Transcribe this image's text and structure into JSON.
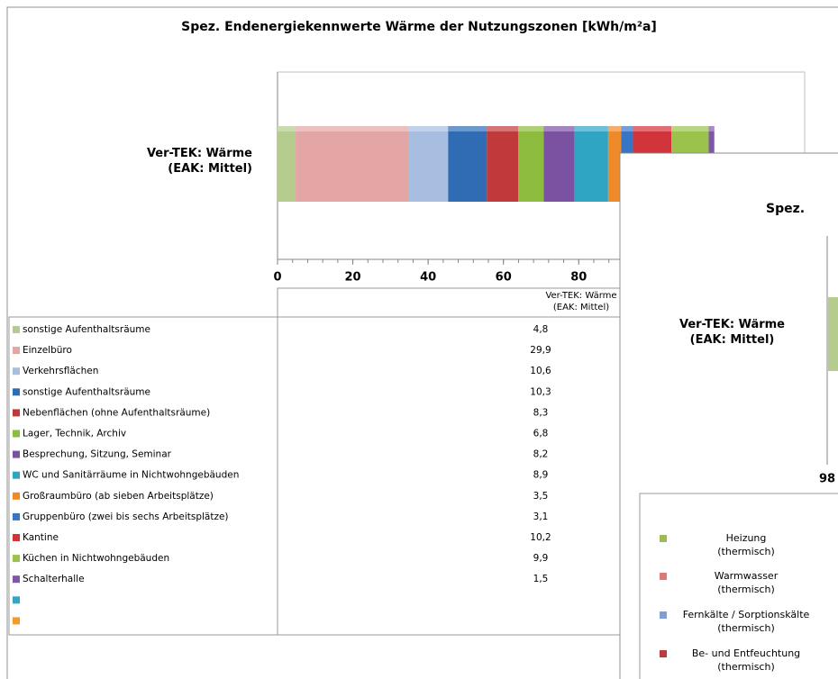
{
  "chart_data": [
    {
      "type": "bar",
      "orientation": "horizontal",
      "stacked": true,
      "title": "Spez. Endenergiekennwerte Wärme der Nutzungszonen [kWh/m²a]",
      "categories": [
        "Ver-TEK: Wärme\n(EAK: Mittel)"
      ],
      "table_header": "Ver-TEK: Wärme\n(EAK: Mittel)",
      "xlim": [
        0,
        140
      ],
      "xticks": [
        0,
        20,
        40,
        60,
        80
      ],
      "series": [
        {
          "name": "sonstige Aufenthaltsräume",
          "color": "#b5cc8e",
          "values": [
            4.8
          ],
          "value_labels": [
            "4,8"
          ]
        },
        {
          "name": "Einzelbüro",
          "color": "#e3a6a5",
          "values": [
            29.9
          ],
          "value_labels": [
            "29,9"
          ]
        },
        {
          "name": "Verkehrsflächen",
          "color": "#a7bee0",
          "values": [
            10.6
          ],
          "value_labels": [
            "10,6"
          ]
        },
        {
          "name": "sonstige Aufenthaltsräume",
          "color": "#2f6cb4",
          "values": [
            10.3
          ],
          "value_labels": [
            "10,3"
          ]
        },
        {
          "name": "Nebenflächen (ohne Aufenthaltsräume)",
          "color": "#c0393b",
          "values": [
            8.3
          ],
          "value_labels": [
            "8,3"
          ]
        },
        {
          "name": "Lager, Technik, Archiv",
          "color": "#8cbb3d",
          "values": [
            6.8
          ],
          "value_labels": [
            "6,8"
          ]
        },
        {
          "name": "Besprechung, Sitzung, Seminar",
          "color": "#7a52a1",
          "values": [
            8.2
          ],
          "value_labels": [
            "8,2"
          ]
        },
        {
          "name": "WC und Sanitärräume in Nichtwohngebäuden",
          "color": "#2fa5c3",
          "values": [
            8.9
          ],
          "value_labels": [
            "8,9"
          ]
        },
        {
          "name": "Großraumbüro (ab sieben Arbeitsplätze)",
          "color": "#ef8a2b",
          "values": [
            3.5
          ],
          "value_labels": [
            "3,5"
          ]
        },
        {
          "name": "Gruppenbüro (zwei bis sechs Arbeitsplätze)",
          "color": "#3775c6",
          "values": [
            3.1
          ],
          "value_labels": [
            "3,1"
          ]
        },
        {
          "name": "Kantine",
          "color": "#d1343b",
          "values": [
            10.2
          ],
          "value_labels": [
            "10,2"
          ]
        },
        {
          "name": "Küchen in Nichtwohngebäuden",
          "color": "#9bc34b",
          "values": [
            9.9
          ],
          "value_labels": [
            "9,9"
          ]
        },
        {
          "name": "Schalterhalle",
          "color": "#7e57a6",
          "values": [
            1.5
          ],
          "value_labels": [
            "1,5"
          ]
        },
        {
          "name": null,
          "color": "#33a7c6",
          "values": [
            null
          ]
        },
        {
          "name": null,
          "color": "#f39a30",
          "values": [
            null
          ]
        }
      ]
    },
    {
      "type": "bar",
      "orientation": "horizontal",
      "stacked": true,
      "title": "Spez.",
      "categories": [
        "Ver-TEK: Wärme\n(EAK: Mittel)"
      ],
      "xticks": [
        98
      ],
      "series": [
        {
          "name": "Heizung\n(thermisch)",
          "color": "#9bbb59",
          "values": [
            null
          ]
        },
        {
          "name": "Warmwasser\n(thermisch)",
          "color": "#d9797a",
          "values": [
            null
          ]
        },
        {
          "name": "Fernkälte / Sorptionskälte\n(thermisch)",
          "color": "#7d9fd4",
          "values": [
            null
          ]
        },
        {
          "name": "Be- und Entfeuchtung\n(thermisch)",
          "color": "#c0393b",
          "values": [
            null
          ]
        }
      ]
    }
  ]
}
